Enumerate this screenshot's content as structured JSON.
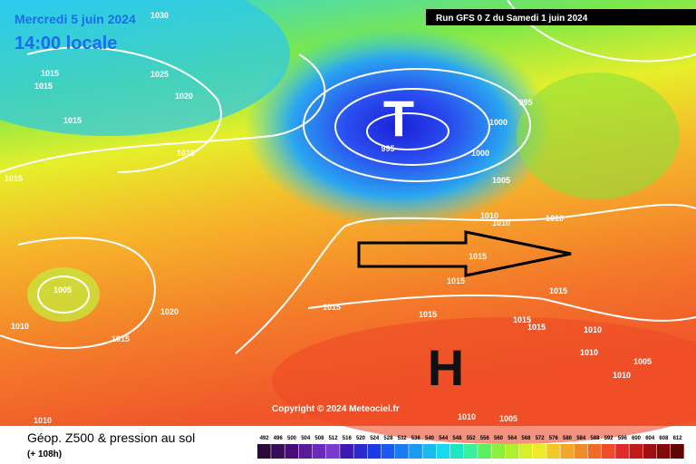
{
  "header": {
    "date": "Mercredi 5 juin 2024",
    "time": "14:00 locale",
    "run": "Run GFS 0 Z du Samedi 1 juin 2024"
  },
  "map": {
    "low_symbol": "T",
    "high_symbol": "H",
    "copyright": "Copyright © 2024 Meteociel.fr",
    "isobar_labels": [
      "1030",
      "1015",
      "1015",
      "1025",
      "1020",
      "1015",
      "1015",
      "1015",
      "995",
      "1000",
      "1000",
      "1005",
      "1010",
      "1010",
      "1010",
      "1015",
      "1015",
      "1015",
      "1005",
      "1010",
      "1020",
      "1015",
      "1015",
      "1015",
      "1015",
      "1015",
      "1010",
      "1010",
      "1010",
      "1005",
      "1010",
      "1005",
      "1010",
      "995"
    ]
  },
  "footer": {
    "title": "Géop. Z500 & pression au sol",
    "lead": "(+ 108h)"
  },
  "legend": {
    "levels": [
      492,
      496,
      500,
      504,
      508,
      512,
      516,
      520,
      524,
      528,
      532,
      536,
      540,
      544,
      548,
      552,
      556,
      560,
      564,
      568,
      572,
      576,
      580,
      584,
      588,
      592,
      596,
      600,
      604,
      608,
      612
    ]
  }
}
